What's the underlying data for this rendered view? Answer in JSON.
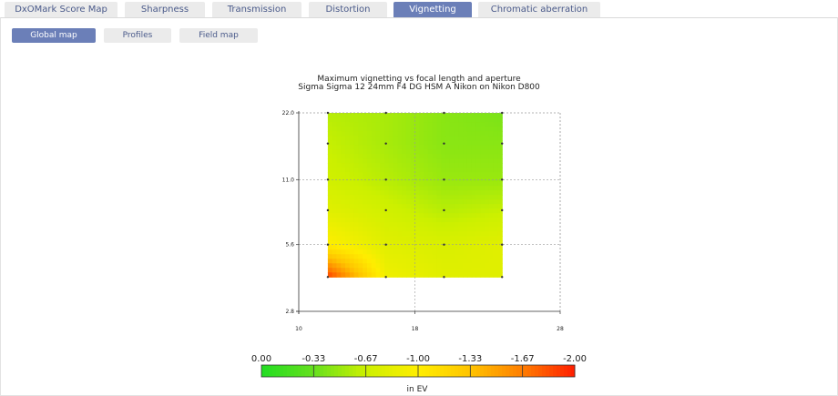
{
  "tabs": [
    {
      "label": "DxOMark Score Map",
      "active": false
    },
    {
      "label": "Sharpness",
      "active": false
    },
    {
      "label": "Transmission",
      "active": false
    },
    {
      "label": "Distortion",
      "active": false
    },
    {
      "label": "Vignetting",
      "active": true
    },
    {
      "label": "Chromatic aberration",
      "active": false
    }
  ],
  "subtabs": [
    {
      "label": "Global map",
      "active": true
    },
    {
      "label": "Profiles",
      "active": false
    },
    {
      "label": "Field map",
      "active": false
    }
  ],
  "chart_data": {
    "type": "heatmap",
    "title": "Maximum vignetting vs focal length and aperture",
    "subtitle": "Sigma Sigma 12 24mm F4 DG HSM A Nikon on Nikon D800",
    "x_ticks": [
      10,
      18,
      28
    ],
    "y_ticks": [
      2.8,
      5.6,
      11.0,
      22.0
    ],
    "y_tick_labels": [
      "2.8",
      "5.6",
      "11.0",
      "22.0"
    ],
    "xlim": [
      10,
      28
    ],
    "ylim": [
      2.8,
      22.0
    ],
    "y_scale": "log",
    "grid": true,
    "data_x_range": [
      12,
      24
    ],
    "data_y_range": [
      4.0,
      22.0
    ],
    "sample_x": [
      12,
      16,
      20,
      24
    ],
    "sample_y": [
      4.0,
      5.6,
      8.0,
      11.0,
      16.0,
      22.0
    ],
    "approx_values_ev": [
      [
        -1.9,
        -0.9,
        -0.8,
        -0.8
      ],
      [
        -1.0,
        -0.8,
        -0.75,
        -0.8
      ],
      [
        -0.8,
        -0.7,
        -0.6,
        -0.65
      ],
      [
        -0.7,
        -0.6,
        -0.5,
        -0.5
      ],
      [
        -0.65,
        -0.55,
        -0.45,
        -0.45
      ],
      [
        -0.6,
        -0.55,
        -0.45,
        -0.4
      ]
    ],
    "color_scale": {
      "labels": [
        "0.00",
        "-0.33",
        "-0.67",
        "-1.00",
        "-1.33",
        "-1.67",
        "-2.00"
      ],
      "range": [
        0,
        -2.0
      ],
      "colors": [
        "#22dd22",
        "#66e01e",
        "#ccf000",
        "#ffee00",
        "#ffc400",
        "#ff7d00",
        "#ff1e00"
      ],
      "unit": "in EV"
    }
  }
}
